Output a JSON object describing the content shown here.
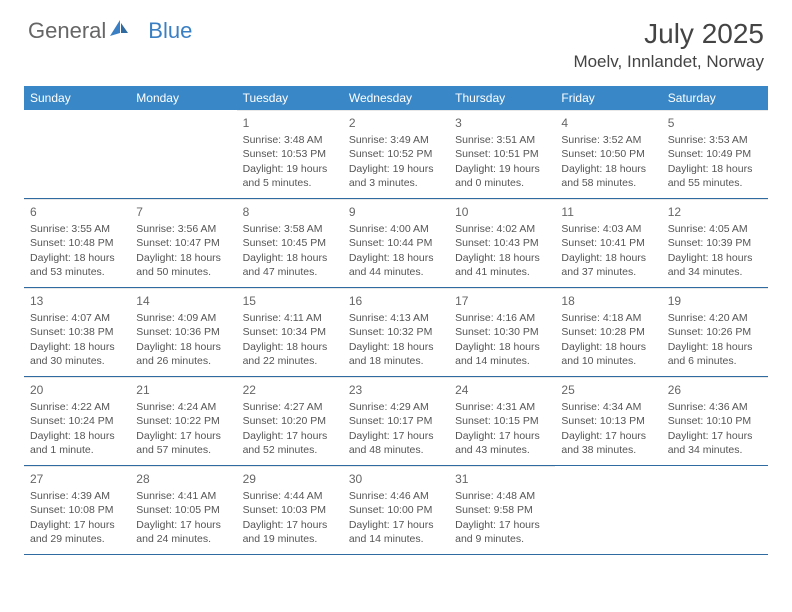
{
  "brand": {
    "part1": "General",
    "part2": "Blue"
  },
  "title": "July 2025",
  "location": "Moelv, Innlandet, Norway",
  "colors": {
    "header_bg": "#3a87c7",
    "header_text": "#ffffff",
    "week_divider": "#2f6aa0",
    "cell_text": "#555555",
    "brand_blue": "#3a7fc4"
  },
  "dow": [
    "Sunday",
    "Monday",
    "Tuesday",
    "Wednesday",
    "Thursday",
    "Friday",
    "Saturday"
  ],
  "weeks": [
    [
      null,
      null,
      {
        "n": "1",
        "sr": "Sunrise: 3:48 AM",
        "ss": "Sunset: 10:53 PM",
        "dl1": "Daylight: 19 hours",
        "dl2": "and 5 minutes."
      },
      {
        "n": "2",
        "sr": "Sunrise: 3:49 AM",
        "ss": "Sunset: 10:52 PM",
        "dl1": "Daylight: 19 hours",
        "dl2": "and 3 minutes."
      },
      {
        "n": "3",
        "sr": "Sunrise: 3:51 AM",
        "ss": "Sunset: 10:51 PM",
        "dl1": "Daylight: 19 hours",
        "dl2": "and 0 minutes."
      },
      {
        "n": "4",
        "sr": "Sunrise: 3:52 AM",
        "ss": "Sunset: 10:50 PM",
        "dl1": "Daylight: 18 hours",
        "dl2": "and 58 minutes."
      },
      {
        "n": "5",
        "sr": "Sunrise: 3:53 AM",
        "ss": "Sunset: 10:49 PM",
        "dl1": "Daylight: 18 hours",
        "dl2": "and 55 minutes."
      }
    ],
    [
      {
        "n": "6",
        "sr": "Sunrise: 3:55 AM",
        "ss": "Sunset: 10:48 PM",
        "dl1": "Daylight: 18 hours",
        "dl2": "and 53 minutes."
      },
      {
        "n": "7",
        "sr": "Sunrise: 3:56 AM",
        "ss": "Sunset: 10:47 PM",
        "dl1": "Daylight: 18 hours",
        "dl2": "and 50 minutes."
      },
      {
        "n": "8",
        "sr": "Sunrise: 3:58 AM",
        "ss": "Sunset: 10:45 PM",
        "dl1": "Daylight: 18 hours",
        "dl2": "and 47 minutes."
      },
      {
        "n": "9",
        "sr": "Sunrise: 4:00 AM",
        "ss": "Sunset: 10:44 PM",
        "dl1": "Daylight: 18 hours",
        "dl2": "and 44 minutes."
      },
      {
        "n": "10",
        "sr": "Sunrise: 4:02 AM",
        "ss": "Sunset: 10:43 PM",
        "dl1": "Daylight: 18 hours",
        "dl2": "and 41 minutes."
      },
      {
        "n": "11",
        "sr": "Sunrise: 4:03 AM",
        "ss": "Sunset: 10:41 PM",
        "dl1": "Daylight: 18 hours",
        "dl2": "and 37 minutes."
      },
      {
        "n": "12",
        "sr": "Sunrise: 4:05 AM",
        "ss": "Sunset: 10:39 PM",
        "dl1": "Daylight: 18 hours",
        "dl2": "and 34 minutes."
      }
    ],
    [
      {
        "n": "13",
        "sr": "Sunrise: 4:07 AM",
        "ss": "Sunset: 10:38 PM",
        "dl1": "Daylight: 18 hours",
        "dl2": "and 30 minutes."
      },
      {
        "n": "14",
        "sr": "Sunrise: 4:09 AM",
        "ss": "Sunset: 10:36 PM",
        "dl1": "Daylight: 18 hours",
        "dl2": "and 26 minutes."
      },
      {
        "n": "15",
        "sr": "Sunrise: 4:11 AM",
        "ss": "Sunset: 10:34 PM",
        "dl1": "Daylight: 18 hours",
        "dl2": "and 22 minutes."
      },
      {
        "n": "16",
        "sr": "Sunrise: 4:13 AM",
        "ss": "Sunset: 10:32 PM",
        "dl1": "Daylight: 18 hours",
        "dl2": "and 18 minutes."
      },
      {
        "n": "17",
        "sr": "Sunrise: 4:16 AM",
        "ss": "Sunset: 10:30 PM",
        "dl1": "Daylight: 18 hours",
        "dl2": "and 14 minutes."
      },
      {
        "n": "18",
        "sr": "Sunrise: 4:18 AM",
        "ss": "Sunset: 10:28 PM",
        "dl1": "Daylight: 18 hours",
        "dl2": "and 10 minutes."
      },
      {
        "n": "19",
        "sr": "Sunrise: 4:20 AM",
        "ss": "Sunset: 10:26 PM",
        "dl1": "Daylight: 18 hours",
        "dl2": "and 6 minutes."
      }
    ],
    [
      {
        "n": "20",
        "sr": "Sunrise: 4:22 AM",
        "ss": "Sunset: 10:24 PM",
        "dl1": "Daylight: 18 hours",
        "dl2": "and 1 minute."
      },
      {
        "n": "21",
        "sr": "Sunrise: 4:24 AM",
        "ss": "Sunset: 10:22 PM",
        "dl1": "Daylight: 17 hours",
        "dl2": "and 57 minutes."
      },
      {
        "n": "22",
        "sr": "Sunrise: 4:27 AM",
        "ss": "Sunset: 10:20 PM",
        "dl1": "Daylight: 17 hours",
        "dl2": "and 52 minutes."
      },
      {
        "n": "23",
        "sr": "Sunrise: 4:29 AM",
        "ss": "Sunset: 10:17 PM",
        "dl1": "Daylight: 17 hours",
        "dl2": "and 48 minutes."
      },
      {
        "n": "24",
        "sr": "Sunrise: 4:31 AM",
        "ss": "Sunset: 10:15 PM",
        "dl1": "Daylight: 17 hours",
        "dl2": "and 43 minutes."
      },
      {
        "n": "25",
        "sr": "Sunrise: 4:34 AM",
        "ss": "Sunset: 10:13 PM",
        "dl1": "Daylight: 17 hours",
        "dl2": "and 38 minutes."
      },
      {
        "n": "26",
        "sr": "Sunrise: 4:36 AM",
        "ss": "Sunset: 10:10 PM",
        "dl1": "Daylight: 17 hours",
        "dl2": "and 34 minutes."
      }
    ],
    [
      {
        "n": "27",
        "sr": "Sunrise: 4:39 AM",
        "ss": "Sunset: 10:08 PM",
        "dl1": "Daylight: 17 hours",
        "dl2": "and 29 minutes."
      },
      {
        "n": "28",
        "sr": "Sunrise: 4:41 AM",
        "ss": "Sunset: 10:05 PM",
        "dl1": "Daylight: 17 hours",
        "dl2": "and 24 minutes."
      },
      {
        "n": "29",
        "sr": "Sunrise: 4:44 AM",
        "ss": "Sunset: 10:03 PM",
        "dl1": "Daylight: 17 hours",
        "dl2": "and 19 minutes."
      },
      {
        "n": "30",
        "sr": "Sunrise: 4:46 AM",
        "ss": "Sunset: 10:00 PM",
        "dl1": "Daylight: 17 hours",
        "dl2": "and 14 minutes."
      },
      {
        "n": "31",
        "sr": "Sunrise: 4:48 AM",
        "ss": "Sunset: 9:58 PM",
        "dl1": "Daylight: 17 hours",
        "dl2": "and 9 minutes."
      },
      null,
      null
    ]
  ]
}
